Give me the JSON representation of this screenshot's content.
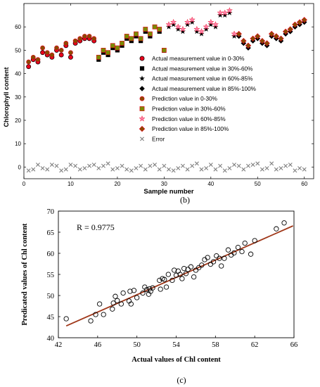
{
  "panels": {
    "b": {
      "label": "(b)"
    },
    "c": {
      "label": "(c)"
    }
  },
  "colors": {
    "red": "#e8001c",
    "black": "#000000",
    "brown": "#8b4a00",
    "pink": "#ff7fa8",
    "olive": "#7b8a00",
    "gray": "#808080",
    "fit_line": "#a0381a"
  },
  "chart_data": [
    {
      "type": "scatter",
      "xlabel": "Sample number",
      "ylabel": "Chlorophyll content",
      "xlim": [
        0,
        62
      ],
      "ylim": [
        -5,
        70
      ],
      "xticks": [
        0,
        10,
        20,
        30,
        40,
        50,
        60
      ],
      "yticks": [
        0,
        10,
        20,
        30,
        40,
        50,
        60
      ],
      "grid": false,
      "legend_position": "center-right",
      "legend": [
        "Actual measurement value in 0-30%",
        "Actual measurement value in 30%-60%",
        "Actual measurement value in 60%-85%",
        "Actual measurement value in 85%-100%",
        "Prediction value in 0-30%",
        "Prediction value in 30%-60%",
        "Prediction value in 60%-85%",
        "Prediction value in 85%-100%",
        "Error"
      ],
      "series": [
        {
          "marker": "circle-red",
          "x": [
            1,
            2,
            3,
            4,
            5,
            6,
            7,
            8,
            9,
            10,
            11,
            12,
            13,
            14,
            15
          ],
          "y": [
            43,
            46,
            45,
            49,
            48,
            47,
            50,
            48,
            52,
            47,
            53,
            54,
            55,
            55,
            54
          ]
        },
        {
          "marker": "square-black",
          "x": [
            16,
            17,
            18,
            19,
            20,
            21,
            22,
            23,
            24,
            25,
            26,
            27,
            28,
            29,
            30
          ],
          "y": [
            46,
            49,
            48,
            51,
            50,
            52,
            55,
            54,
            56,
            54,
            58,
            56,
            60,
            58,
            49
          ]
        },
        {
          "marker": "star-black",
          "x": [
            31,
            32,
            33,
            34,
            35,
            36,
            37,
            38,
            39,
            40,
            41,
            42,
            43,
            44,
            45
          ],
          "y": [
            60,
            61,
            59,
            58,
            61,
            62,
            58,
            57,
            59,
            61,
            60,
            65,
            65,
            66,
            56
          ]
        },
        {
          "marker": "diamond-black",
          "x": [
            46,
            47,
            48,
            49,
            50,
            51,
            52,
            53,
            54,
            55,
            56,
            57,
            58,
            59,
            60
          ],
          "y": [
            56,
            53,
            51,
            54,
            55,
            53,
            52,
            56,
            55,
            54,
            57,
            58,
            60,
            61,
            62
          ]
        },
        {
          "marker": "circle-brown",
          "x": [
            1,
            2,
            3,
            4,
            5,
            6,
            7,
            8,
            9,
            10,
            11,
            12,
            13,
            14,
            15
          ],
          "y": [
            45,
            47,
            46,
            51,
            49,
            48,
            51,
            50,
            53,
            49,
            54,
            55,
            56,
            56,
            55
          ]
        },
        {
          "marker": "square-olive",
          "x": [
            16,
            17,
            18,
            19,
            20,
            21,
            22,
            23,
            24,
            25,
            26,
            27,
            28,
            29,
            30
          ],
          "y": [
            47,
            50,
            49,
            52,
            51,
            53,
            56,
            55,
            57,
            55,
            59,
            57,
            60,
            59,
            50
          ]
        },
        {
          "marker": "star-pink",
          "x": [
            31,
            32,
            33,
            34,
            35,
            36,
            37,
            38,
            39,
            40,
            41,
            42,
            43,
            44,
            45
          ],
          "y": [
            61,
            62,
            60,
            59,
            62,
            63,
            59,
            58,
            60,
            62,
            61,
            66,
            66,
            67,
            57
          ]
        },
        {
          "marker": "diamond-brown",
          "x": [
            46,
            47,
            48,
            49,
            50,
            51,
            52,
            53,
            54,
            55,
            56,
            57,
            58,
            59,
            60
          ],
          "y": [
            57,
            54,
            52,
            55,
            56,
            54,
            53,
            57,
            56,
            55,
            58,
            59,
            61,
            62,
            63
          ]
        },
        {
          "marker": "x-gray",
          "x": [
            1,
            2,
            3,
            4,
            5,
            6,
            7,
            8,
            9,
            10,
            11,
            12,
            13,
            14,
            15,
            16,
            17,
            18,
            19,
            20,
            21,
            22,
            23,
            24,
            25,
            26,
            27,
            28,
            29,
            30,
            31,
            32,
            33,
            34,
            35,
            36,
            37,
            38,
            39,
            40,
            41,
            42,
            43,
            44,
            45,
            46,
            47,
            48,
            49,
            50,
            51,
            52,
            53,
            54,
            55,
            56,
            57,
            58,
            59,
            60
          ],
          "y": [
            -1.5,
            -1,
            1,
            -0.5,
            -1,
            1,
            0.5,
            -1.5,
            -1,
            1,
            0.5,
            -1,
            -0.5,
            0.5,
            1,
            -0.5,
            0.5,
            1.5,
            -1,
            -0.5,
            0.5,
            -1,
            -1.5,
            -0.5,
            0.5,
            -1,
            0.5,
            1,
            -1,
            0.5,
            -1,
            -1.5,
            -0.5,
            0.5,
            -1,
            0.5,
            1.5,
            -1,
            -0.5,
            1,
            -1,
            0.5,
            -1.5,
            -0.5,
            1,
            0.5,
            -1,
            0.5,
            1,
            1.5,
            -1,
            -0.5,
            1.5,
            -1,
            -0.5,
            0.5,
            1,
            -1.5,
            -0.5,
            -1
          ]
        }
      ]
    },
    {
      "type": "scatter",
      "annotation": "R = 0.9775",
      "xlabel": "Actual values of Chl content",
      "ylabel": "Predicated values of Chl content",
      "xlim": [
        42,
        66
      ],
      "ylim": [
        40,
        70
      ],
      "xticks": [
        42,
        46,
        50,
        54,
        58,
        62,
        66
      ],
      "yticks": [
        40,
        45,
        50,
        55,
        60,
        65,
        70
      ],
      "grid": false,
      "fit_line": {
        "x": [
          42.8,
          65.9
        ],
        "y": [
          42.8,
          66.5
        ]
      },
      "x": [
        42.8,
        45.3,
        45.8,
        46.2,
        46.6,
        47.5,
        47.6,
        47.8,
        48.0,
        48.4,
        48.6,
        49.2,
        49.3,
        49.4,
        49.7,
        50.0,
        50.6,
        50.8,
        51.0,
        51.2,
        51.3,
        51.4,
        51.6,
        52.3,
        52.4,
        52.6,
        52.8,
        53.0,
        53.2,
        53.6,
        53.8,
        54.0,
        54.2,
        54.4,
        54.6,
        54.8,
        55.0,
        55.2,
        55.5,
        55.8,
        56.0,
        56.3,
        56.6,
        56.9,
        57.2,
        57.5,
        57.8,
        58.1,
        58.4,
        58.6,
        58.9,
        59.3,
        59.6,
        59.9,
        60.3,
        60.7,
        61.0,
        61.6,
        62.0,
        64.2,
        65.0
      ],
      "y": [
        44.5,
        44.0,
        45.5,
        48.0,
        45.5,
        46.8,
        48.2,
        49.8,
        48.8,
        48.0,
        50.6,
        48.7,
        51.0,
        48.0,
        51.2,
        49.5,
        50.6,
        52.0,
        51.4,
        50.3,
        51.6,
        51.0,
        51.8,
        53.6,
        51.5,
        54.0,
        53.8,
        52.0,
        55.0,
        53.6,
        56.0,
        54.8,
        55.8,
        55.0,
        54.0,
        56.4,
        55.2,
        56.2,
        56.8,
        54.4,
        56.0,
        56.6,
        57.2,
        58.5,
        59.0,
        57.4,
        58.0,
        59.4,
        58.8,
        57.0,
        58.8,
        60.8,
        59.6,
        60.1,
        61.4,
        60.4,
        62.4,
        59.8,
        63.0,
        65.8,
        67.2
      ]
    }
  ]
}
